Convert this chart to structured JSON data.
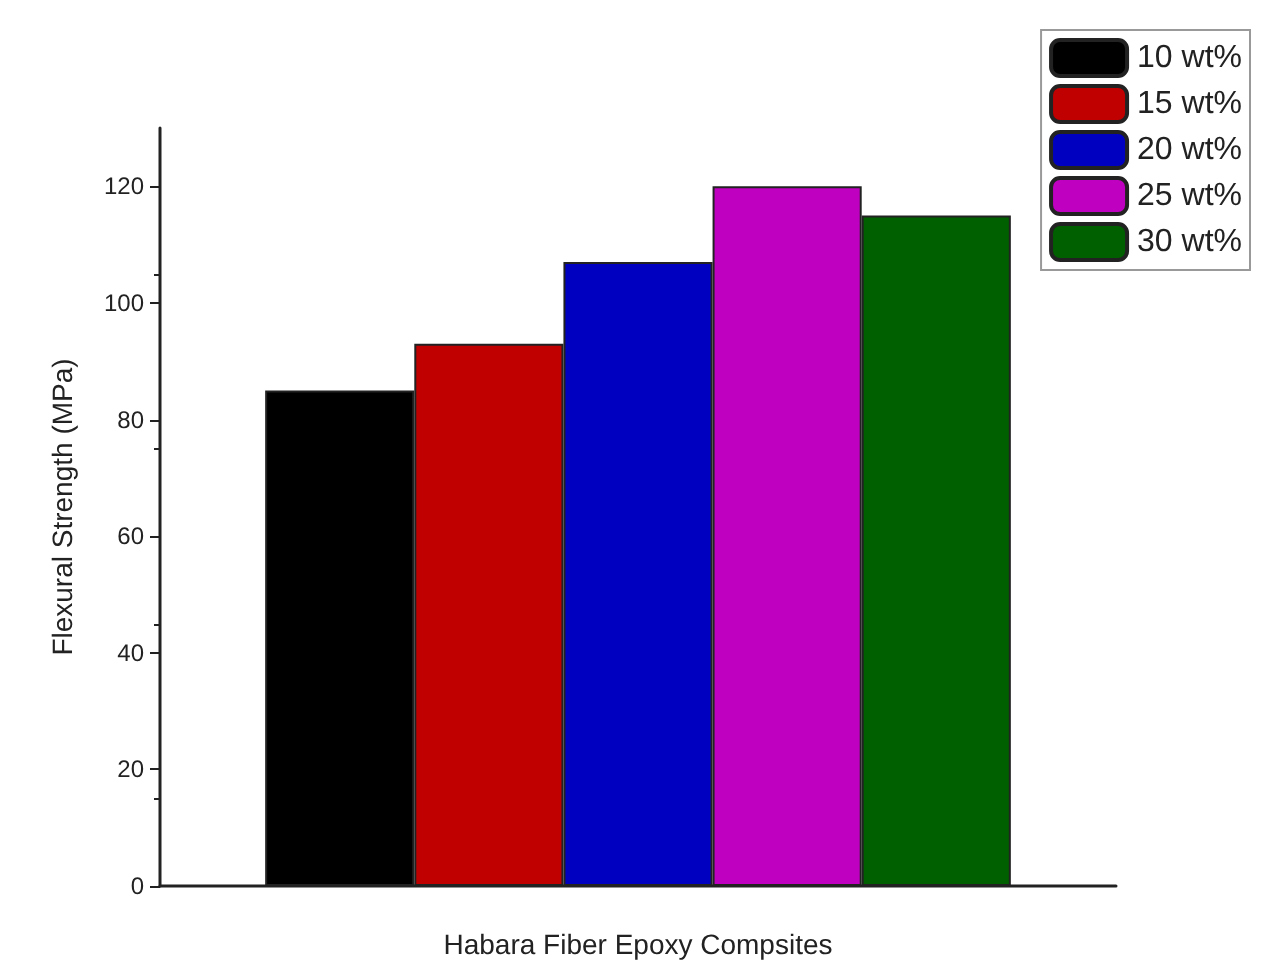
{
  "chart_data": {
    "type": "bar",
    "xlabel": "Habara Fiber Epoxy Compsites",
    "ylabel": "Flexural Strength (MPa)",
    "categories": [
      null
    ],
    "series": [
      {
        "name": "10 wt%",
        "color": "#000000",
        "values": [
          85
        ]
      },
      {
        "name": "15 wt%",
        "color": "#c00000",
        "values": [
          93
        ]
      },
      {
        "name": "20 wt%",
        "color": "#0000c0",
        "values": [
          107
        ]
      },
      {
        "name": "25 wt%",
        "color": "#c000c0",
        "values": [
          120
        ]
      },
      {
        "name": "30 wt%",
        "color": "#006000",
        "values": [
          115
        ]
      }
    ],
    "ylim": [
      0,
      130
    ],
    "yticks": [
      0,
      20,
      40,
      60,
      80,
      100,
      120
    ],
    "grid": false,
    "legend": "top right"
  }
}
